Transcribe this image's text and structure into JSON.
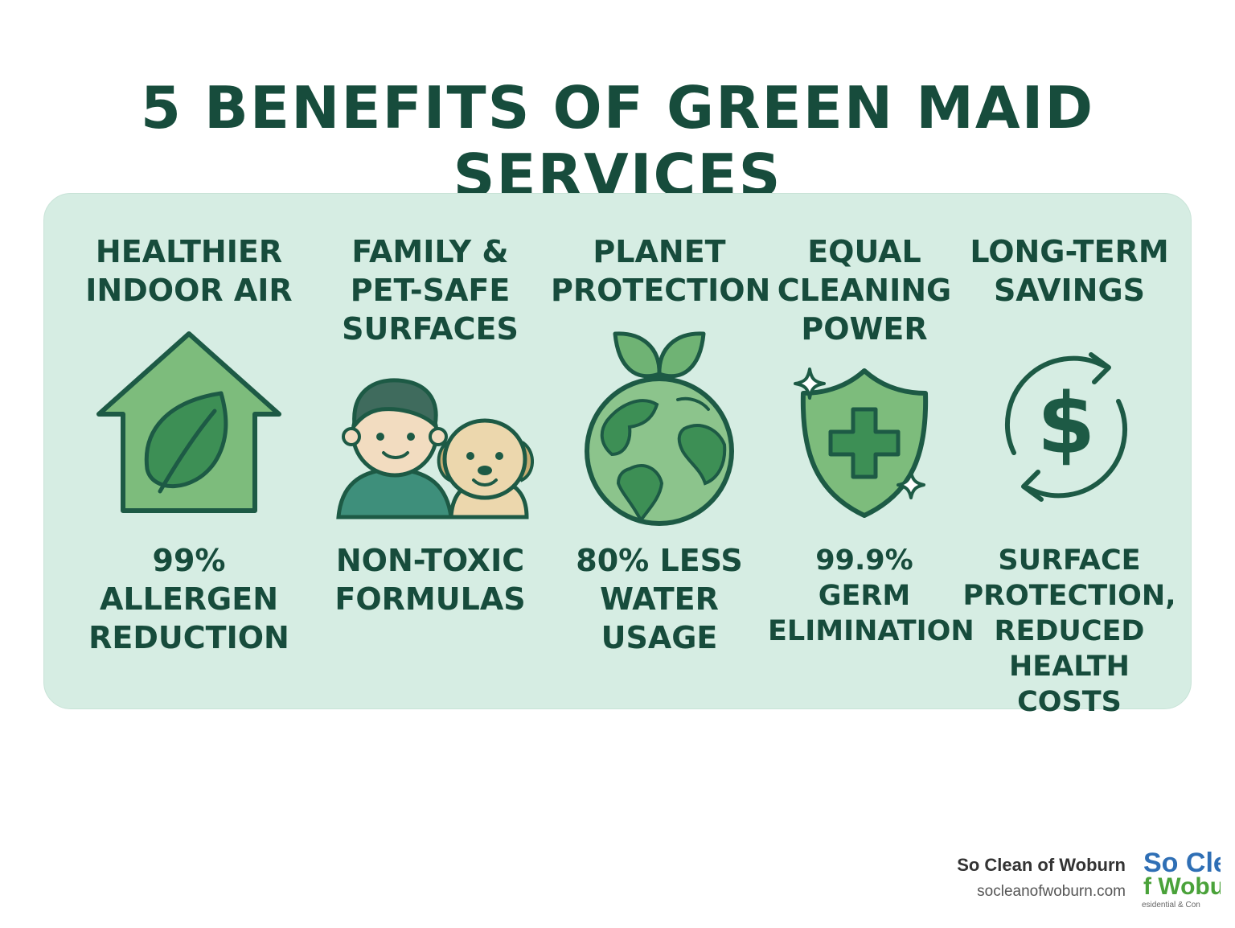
{
  "title": "5 BENEFITS OF GREEN MAID SERVICES",
  "benefits": [
    {
      "heading": "HEALTHIER\nINDOOR AIR",
      "icon": "house-leaf-icon",
      "stat": "99%\nALLERGEN\nREDUCTION"
    },
    {
      "heading": "FAMILY &\nPET-SAFE\nSURFACES",
      "icon": "child-and-dog-icon",
      "stat": "NON-TOXIC\nFORMULAS"
    },
    {
      "heading": "PLANET\nPROTECTION",
      "icon": "globe-sprout-icon",
      "stat": "80% LESS\nWATER USAGE"
    },
    {
      "heading": "EQUAL\nCLEANING\nPOWER",
      "icon": "shield-cross-icon",
      "stat": "99.9%\nGERM\nELIMINATION"
    },
    {
      "heading": "LONG-TERM\nSAVINGS",
      "icon": "dollar-cycle-icon",
      "stat": "SURFACE\nPROTECTION,\nREDUCED\nHEALTH COSTS"
    }
  ],
  "footer": {
    "company": "So Clean of Woburn",
    "url": "socleanofwoburn.com",
    "logo_text_top": "So Cle",
    "logo_text_mid": "f Wobu",
    "logo_text_bottom": "esidential & Con"
  },
  "colors": {
    "primary": "#174c3c",
    "panel": "#d6ede3",
    "icon_green": "#6fb374",
    "icon_dark": "#1d5a45"
  }
}
